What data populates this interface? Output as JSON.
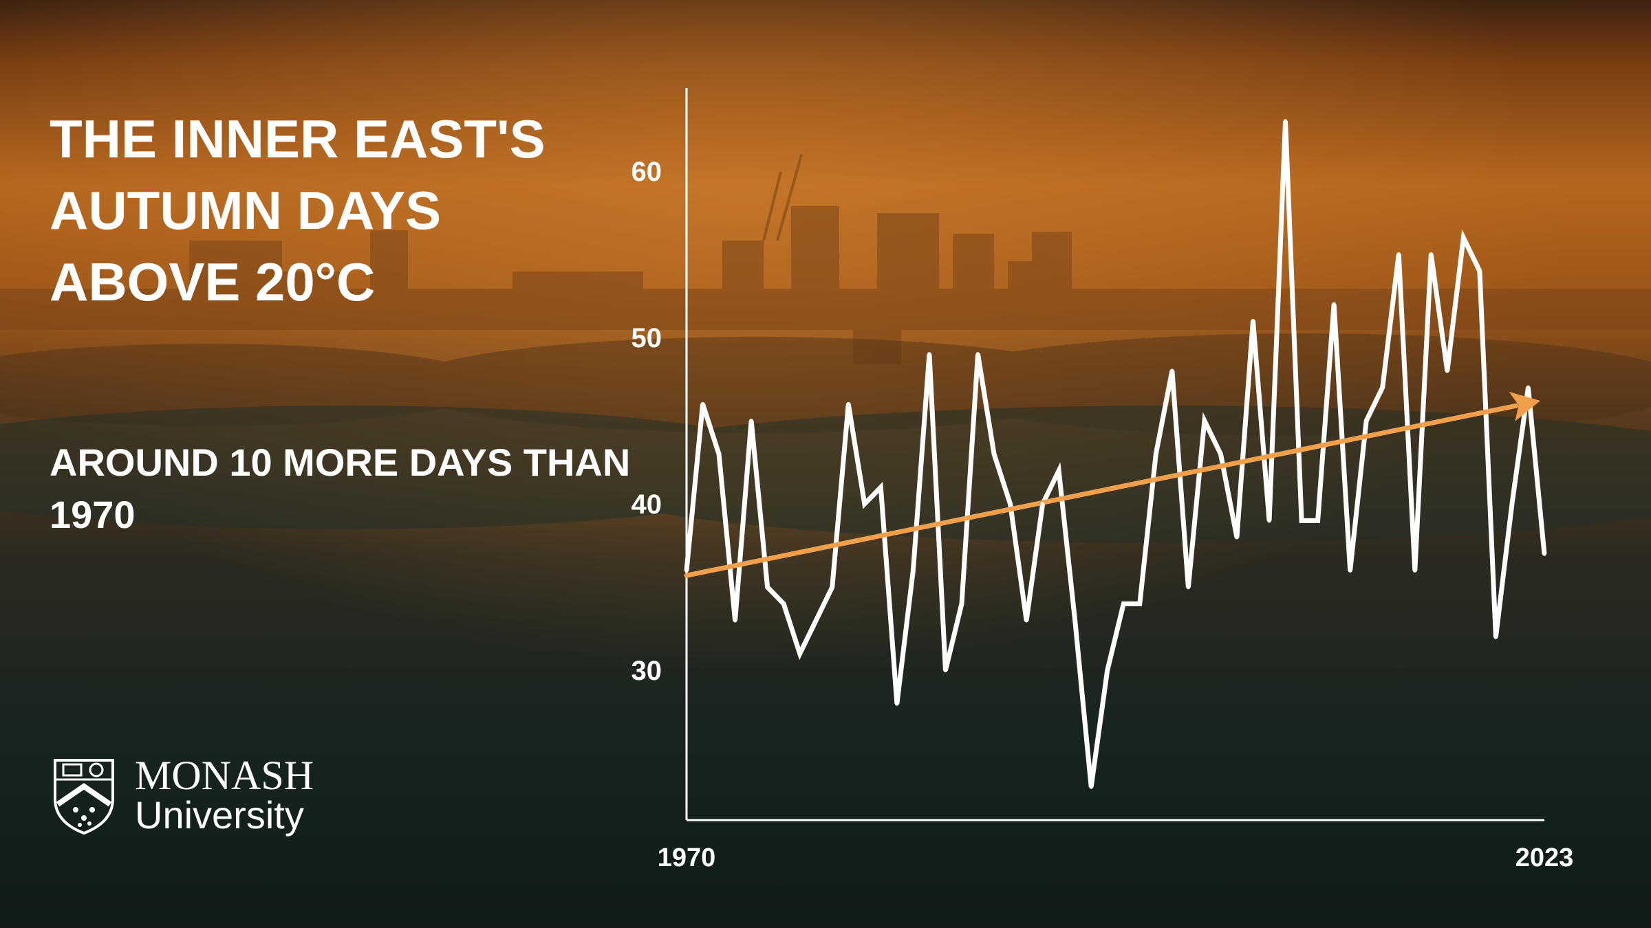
{
  "header": {
    "title": "THE INNER EAST'S AUTUMN DAYS ABOVE 20°C",
    "subtitle": "AROUND 10 MORE DAYS THAN 1970"
  },
  "logo": {
    "line1": "MONASH",
    "line2": "University",
    "icon": "monash-crest-icon"
  },
  "colors": {
    "line": "#ffffff",
    "trend": "#f0a04b",
    "text": "#ffffff",
    "sky_top": "#7a3e12",
    "sky_mid": "#b5671f",
    "ground": "#14201f"
  },
  "chart_data": {
    "type": "line",
    "x": [
      1970,
      1971,
      1972,
      1973,
      1974,
      1975,
      1976,
      1977,
      1978,
      1979,
      1980,
      1981,
      1982,
      1983,
      1984,
      1985,
      1986,
      1987,
      1988,
      1989,
      1990,
      1991,
      1992,
      1993,
      1994,
      1995,
      1996,
      1997,
      1998,
      1999,
      2000,
      2001,
      2002,
      2003,
      2004,
      2005,
      2006,
      2007,
      2008,
      2009,
      2010,
      2011,
      2012,
      2013,
      2014,
      2015,
      2016,
      2017,
      2018,
      2019,
      2020,
      2021,
      2022,
      2023
    ],
    "series": [
      {
        "values": [
          36,
          46,
          43,
          33,
          45,
          35,
          34,
          31,
          33,
          35,
          46,
          40,
          41,
          28,
          36,
          49,
          30,
          34,
          49,
          43,
          40,
          33,
          40,
          42,
          33,
          23,
          30,
          34,
          34,
          43,
          48,
          35,
          45,
          43,
          38,
          51,
          39,
          63,
          39,
          39,
          52,
          36,
          45,
          47,
          55,
          36,
          55,
          48,
          56,
          54,
          32,
          40,
          47,
          37
        ]
      }
    ],
    "trend": {
      "start": [
        1970,
        35.7
      ],
      "end": [
        2023,
        46.2
      ]
    },
    "xticks": [
      "1970",
      "2023"
    ],
    "yticks": [
      30,
      40,
      50,
      60
    ],
    "xlim": [
      1970,
      2023
    ],
    "ylim": [
      21,
      65
    ],
    "grid": false
  }
}
